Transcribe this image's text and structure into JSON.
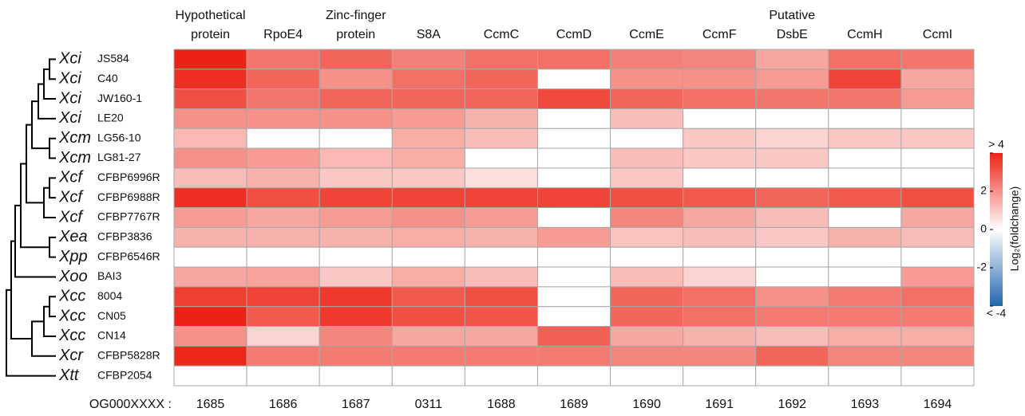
{
  "chart_data": {
    "type": "heatmap",
    "columns": [
      [
        "Hypothetical",
        "protein"
      ],
      [
        "RpoE4"
      ],
      [
        "Zinc-finger",
        "protein"
      ],
      [
        "S8A"
      ],
      [
        "CcmC"
      ],
      [
        "CcmD"
      ],
      [
        "CcmE"
      ],
      [
        "CcmF"
      ],
      [
        "Putative",
        "DsbE"
      ],
      [
        "CcmH"
      ],
      [
        "CcmI"
      ]
    ],
    "column_ids_label": "OG000XXXX :",
    "column_ids": [
      "1685",
      "1686",
      "1687",
      "0311",
      "1688",
      "1689",
      "1690",
      "1691",
      "1692",
      "1693",
      "1694"
    ],
    "rows": [
      {
        "species": "Xci",
        "strain": "JS584"
      },
      {
        "species": "Xci",
        "strain": "C40"
      },
      {
        "species": "Xci",
        "strain": "JW160-1"
      },
      {
        "species": "Xci",
        "strain": "LE20"
      },
      {
        "species": "Xcm",
        "strain": "LG56-10"
      },
      {
        "species": "Xcm",
        "strain": "LG81-27"
      },
      {
        "species": "Xcf",
        "strain": "CFBP6996R"
      },
      {
        "species": "Xcf",
        "strain": "CFBP6988R"
      },
      {
        "species": "Xcf",
        "strain": "CFBP7767R"
      },
      {
        "species": "Xea",
        "strain": "CFBP3836"
      },
      {
        "species": "Xpp",
        "strain": "CFBP6546R"
      },
      {
        "species": "Xoo",
        "strain": "BAI3"
      },
      {
        "species": "Xcc",
        "strain": "8004"
      },
      {
        "species": "Xcc",
        "strain": "CN05"
      },
      {
        "species": "Xcc",
        "strain": "CN14"
      },
      {
        "species": "Xcr",
        "strain": "CFBP5828R"
      },
      {
        "species": "Xtt",
        "strain": "CFBP2054"
      }
    ],
    "values": [
      [
        4,
        2.5,
        2.8,
        2.3,
        2.6,
        2.6,
        2.3,
        2.2,
        1.6,
        2.6,
        2.5
      ],
      [
        3.8,
        2.8,
        2,
        2.6,
        2.8,
        0,
        2,
        2,
        1.8,
        3.4,
        1.6
      ],
      [
        3.2,
        2.5,
        2.8,
        2.8,
        2.8,
        3.3,
        2.8,
        2.6,
        2.5,
        2.5,
        1.8
      ],
      [
        2,
        2,
        2,
        1.8,
        1.4,
        0,
        1.2,
        0,
        0,
        0,
        0
      ],
      [
        1.3,
        0,
        0,
        1.5,
        1.2,
        0,
        0,
        1,
        0.8,
        1,
        1
      ],
      [
        2,
        1.8,
        1.3,
        1.5,
        0,
        0,
        1.2,
        1,
        1,
        0,
        0
      ],
      [
        1.2,
        1.4,
        1,
        1,
        0.6,
        0,
        1,
        0,
        0,
        0,
        0
      ],
      [
        3.8,
        3.2,
        3.4,
        3.4,
        3.4,
        3.4,
        3.2,
        3,
        2.8,
        3,
        3.2
      ],
      [
        1.8,
        1.6,
        1.8,
        2,
        1.8,
        0,
        2.2,
        1.6,
        1.2,
        0,
        1.6
      ],
      [
        1.4,
        1.4,
        1.4,
        1.5,
        1.4,
        1.8,
        1.1,
        1.2,
        1,
        1.4,
        1.2
      ],
      [
        0,
        0,
        0,
        0,
        0,
        0,
        0,
        0,
        0,
        0,
        0
      ],
      [
        1.6,
        1.7,
        1,
        1.5,
        1.2,
        0,
        1.2,
        0.8,
        0,
        0,
        1.8
      ],
      [
        3.5,
        3.4,
        3.6,
        3,
        3.2,
        0,
        2.8,
        2.6,
        2,
        2.4,
        2.6
      ],
      [
        4,
        3,
        3.6,
        3.2,
        3.1,
        0,
        2.8,
        2.6,
        2.4,
        2.4,
        2.4
      ],
      [
        2,
        0.8,
        2.2,
        1.6,
        1.6,
        2.9,
        1.6,
        1.4,
        1.2,
        1.5,
        1.5
      ],
      [
        3.9,
        2.4,
        2.4,
        2.4,
        2.4,
        2.4,
        2.2,
        2.2,
        2.8,
        2.2,
        2.2
      ],
      [
        0,
        0,
        0,
        0,
        0,
        0,
        0,
        0,
        0,
        0,
        0
      ]
    ],
    "colorbar_label": "Log₂(foldchange)",
    "clim": [
      -4,
      4
    ],
    "cticks": [
      {
        "value": -4,
        "label": "< -4"
      },
      -2,
      0,
      2,
      {
        "value": 4,
        "label": "> 4"
      }
    ],
    "colors": {
      "low": "#2166ac",
      "mid": "#ffffff",
      "high": "#ec2314"
    }
  }
}
